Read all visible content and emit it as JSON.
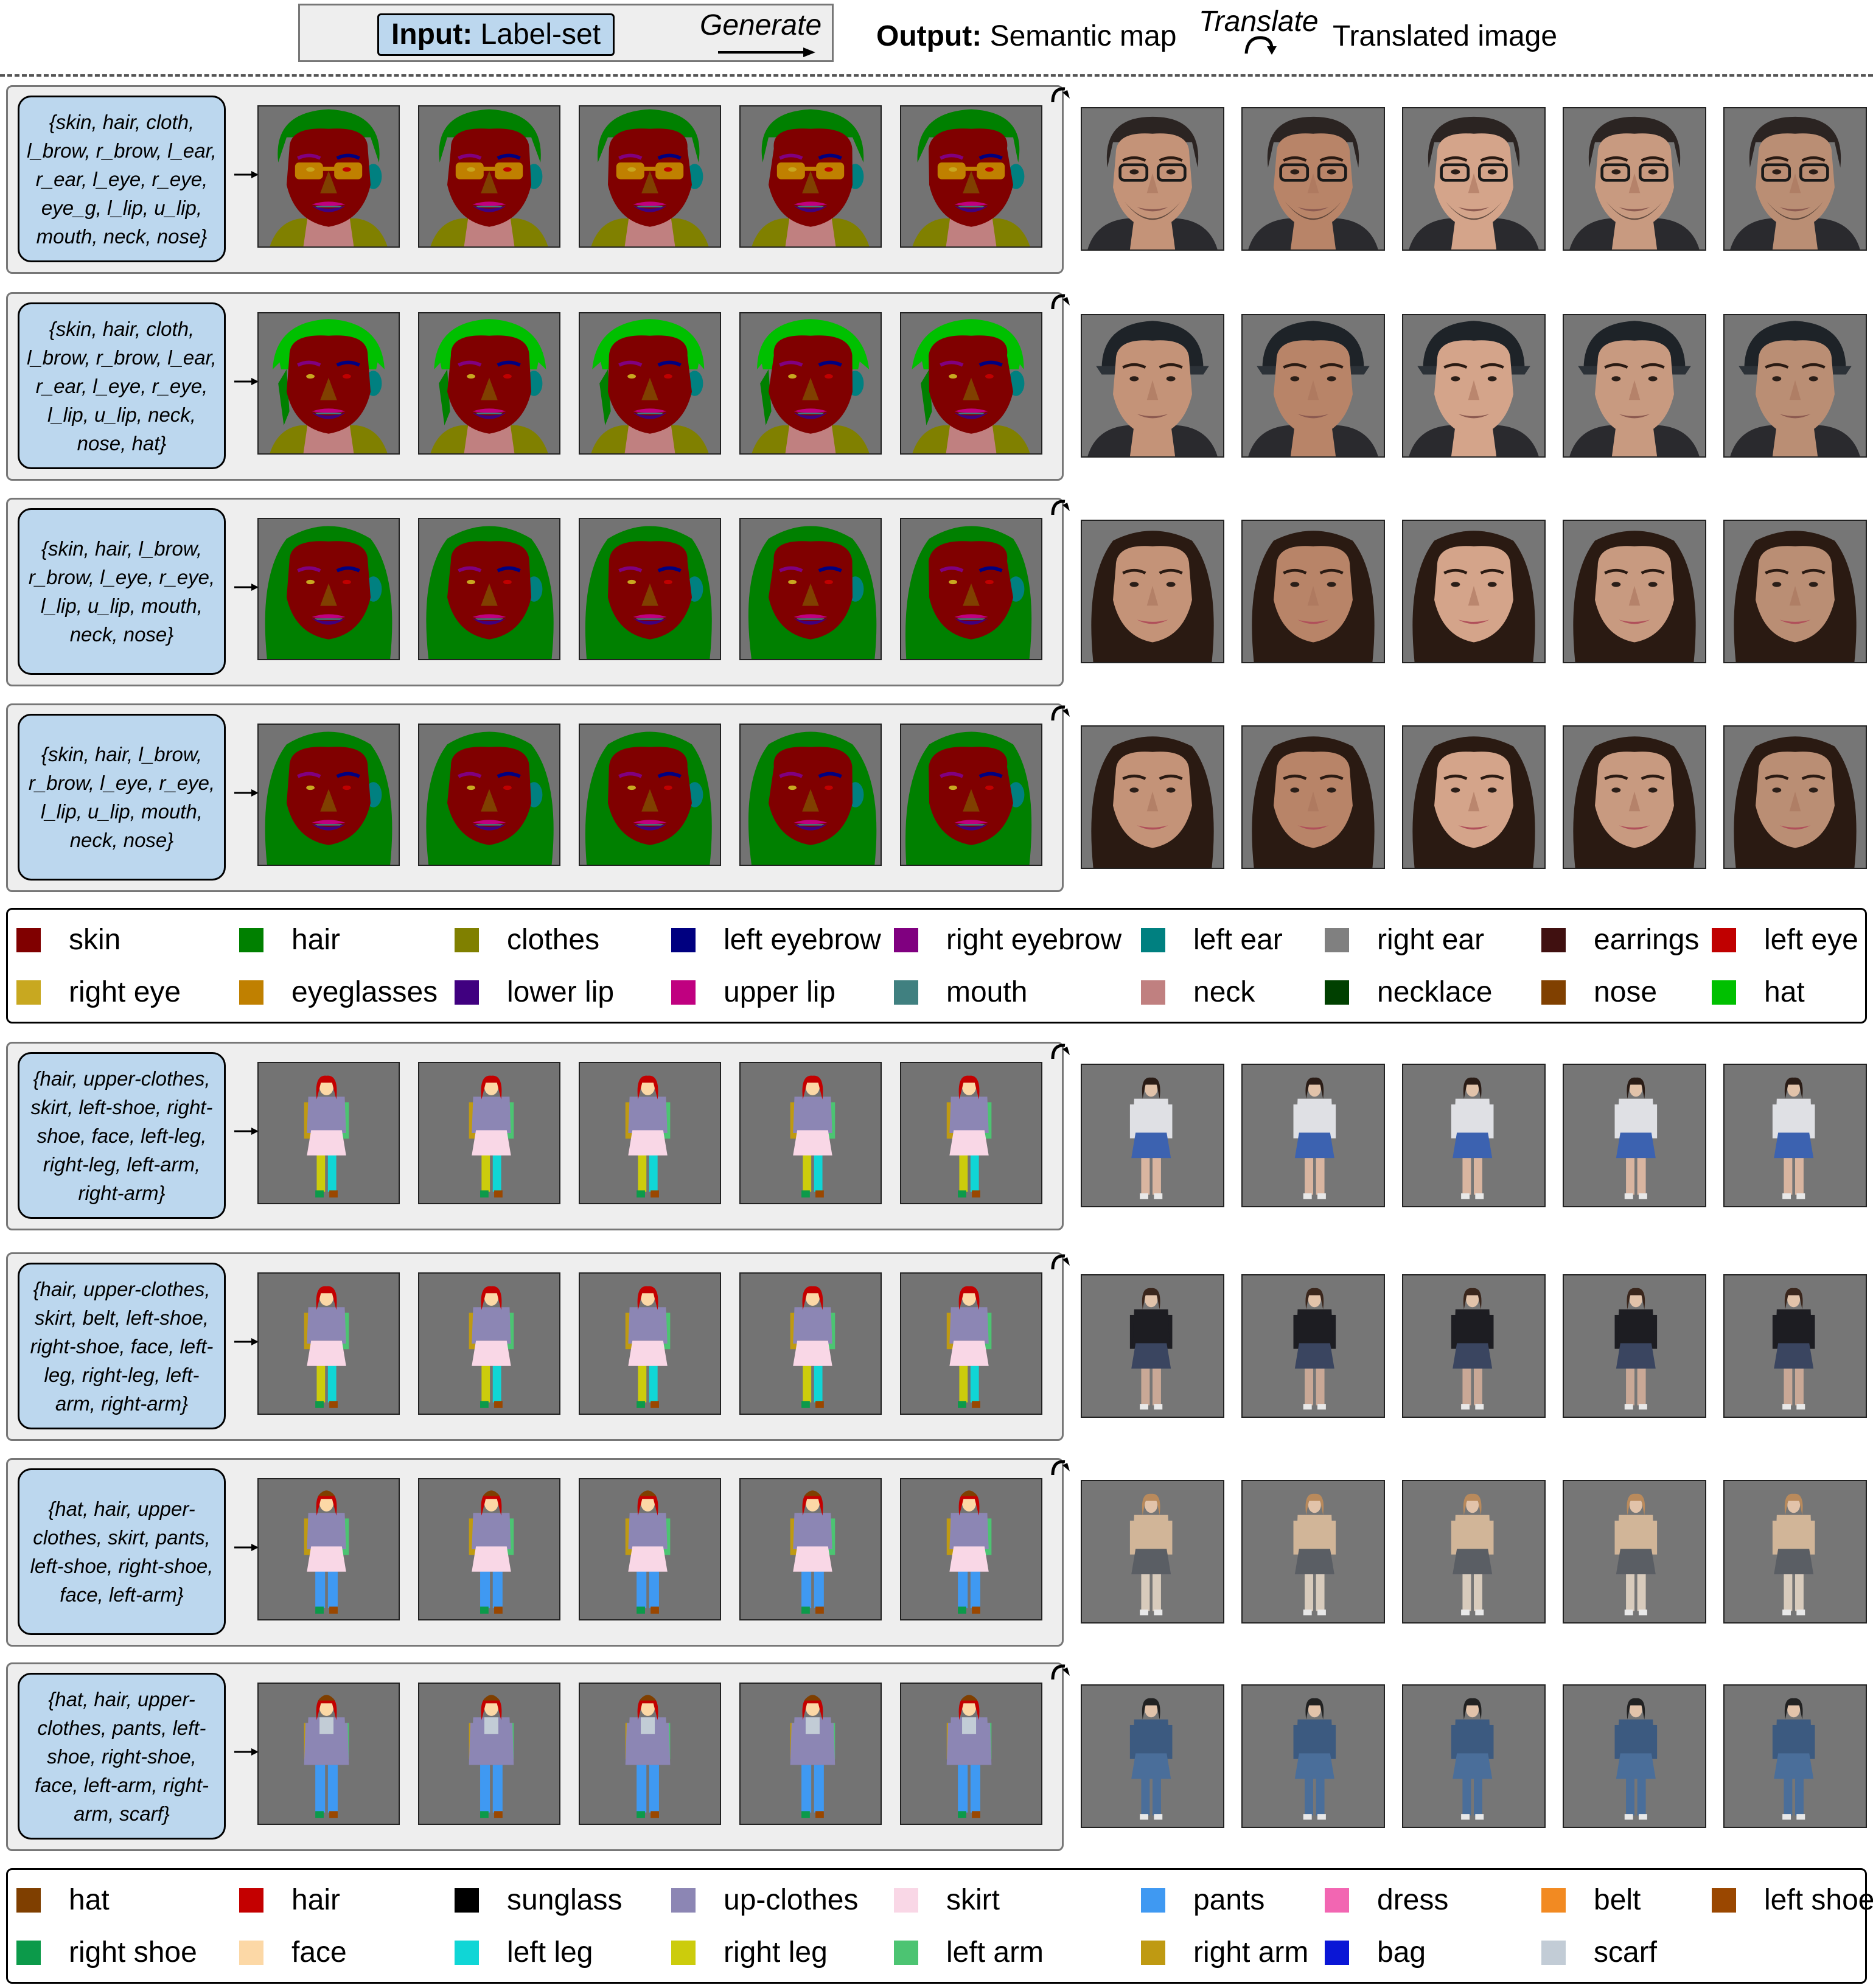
{
  "header": {
    "input_bold": "Input:",
    "input_text": "Label-set",
    "generate": "Generate",
    "output_bold": "Output:",
    "output_text": "Semantic map",
    "translate": "Translate",
    "translated": "Translated image"
  },
  "face_rows": [
    {
      "labelset": "{skin, hair, cloth, l_brow, r_brow, l_ear, r_ear, l_eye, r_eye, eye_g, l_lip, u_lip, mouth, neck, nose}",
      "variant": "glasses"
    },
    {
      "labelset": "{skin, hair, cloth, l_brow, r_brow, l_ear, r_ear, l_eye, r_eye, l_lip, u_lip, neck, nose, hat}",
      "variant": "hat"
    },
    {
      "labelset": "{skin, hair, l_brow, r_brow, l_eye, r_eye, l_lip, u_lip, mouth, neck, nose}",
      "variant": "longhair"
    },
    {
      "labelset": "{skin, hair, l_brow, r_brow, l_eye, r_eye, l_lip, u_lip, mouth, neck, nose}",
      "variant": "longhair2"
    }
  ],
  "face_legend": [
    {
      "label": "skin",
      "color": "#800000"
    },
    {
      "label": "hair",
      "color": "#008000"
    },
    {
      "label": "clothes",
      "color": "#808000"
    },
    {
      "label": "left eyebrow",
      "color": "#000080"
    },
    {
      "label": "right eyebrow",
      "color": "#800080"
    },
    {
      "label": "left ear",
      "color": "#008080"
    },
    {
      "label": "right ear",
      "color": "#808080"
    },
    {
      "label": "earrings",
      "color": "#401010"
    },
    {
      "label": "left eye",
      "color": "#c00000"
    },
    {
      "label": "right eye",
      "color": "#c8a820"
    },
    {
      "label": "eyeglasses",
      "color": "#c08000"
    },
    {
      "label": "lower lip",
      "color": "#400080"
    },
    {
      "label": "upper lip",
      "color": "#c00080"
    },
    {
      "label": "mouth",
      "color": "#408080"
    },
    {
      "label": "neck",
      "color": "#c08080"
    },
    {
      "label": "necklace",
      "color": "#004000"
    },
    {
      "label": "nose",
      "color": "#804000"
    },
    {
      "label": "hat",
      "color": "#00c000"
    }
  ],
  "body_rows": [
    {
      "labelset": "{hair, upper-clothes, skirt, left-shoe, right-shoe, face, left-leg, right-leg, left-arm, right-arm}",
      "variant": "skirt"
    },
    {
      "labelset": "{hair, upper-clothes, skirt, belt, left-shoe, right-shoe, face, left-leg, right-leg, left-arm, right-arm}",
      "variant": "skirtbelt"
    },
    {
      "labelset": "{hat, hair, upper-clothes, skirt, pants, left-shoe, right-shoe, face, left-arm}",
      "variant": "skirtpants"
    },
    {
      "labelset": "{hat, hair, upper-clothes, pants, left-shoe, right-shoe, face, left-arm, right-arm, scarf}",
      "variant": "pants"
    }
  ],
  "body_legend": [
    {
      "label": "hat",
      "color": "#7f3f00"
    },
    {
      "label": "hair",
      "color": "#c40000"
    },
    {
      "label": "sunglass",
      "color": "#000000"
    },
    {
      "label": "up-clothes",
      "color": "#8c86b4"
    },
    {
      "label": "skirt",
      "color": "#f9d7e6"
    },
    {
      "label": "pants",
      "color": "#3f99f2"
    },
    {
      "label": "dress",
      "color": "#f266b2"
    },
    {
      "label": "belt",
      "color": "#f28a22"
    },
    {
      "label": "left shoe",
      "color": "#9a4700"
    },
    {
      "label": "right shoe",
      "color": "#0c9a4a"
    },
    {
      "label": "face",
      "color": "#fcd8a6"
    },
    {
      "label": "left leg",
      "color": "#10d6d6"
    },
    {
      "label": "right leg",
      "color": "#cccc0c"
    },
    {
      "label": "left arm",
      "color": "#4cc472"
    },
    {
      "label": "right arm",
      "color": "#bf9a12"
    },
    {
      "label": "bag",
      "color": "#0a16d6"
    },
    {
      "label": "scarf",
      "color": "#c2ccd6"
    }
  ]
}
